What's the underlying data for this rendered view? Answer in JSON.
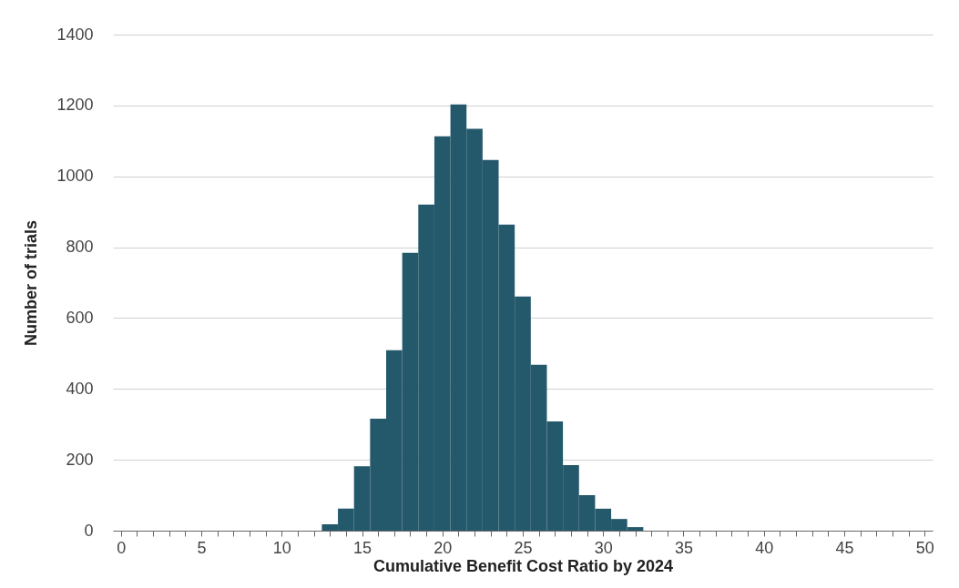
{
  "chart_data": {
    "type": "histogram",
    "xlabel": "Cumulative Benefit Cost Ratio by 2024",
    "ylabel": "Number of trials",
    "bins": [
      12.5,
      13.5,
      14.5,
      15.5,
      16.5,
      17.5,
      18.5,
      19.5,
      20.5,
      21.5,
      22.5,
      23.5,
      24.5,
      25.5,
      26.5,
      27.5,
      28.5,
      29.5,
      30.5,
      31.5,
      32.5
    ],
    "values": [
      18,
      62,
      182,
      316,
      509,
      784,
      920,
      1113,
      1203,
      1134,
      1046,
      864,
      661,
      468,
      308,
      185,
      100,
      62,
      33,
      10
    ],
    "color": "#24596b",
    "xlim": [
      -0.5,
      50.5
    ],
    "xticks": [
      0,
      {
        "value": 1,
        "label": null
      },
      {
        "value": 2,
        "label": null
      },
      {
        "value": 3,
        "label": null
      },
      {
        "value": 4,
        "label": null
      },
      5,
      {
        "value": 6,
        "label": null
      },
      {
        "value": 7,
        "label": null
      },
      {
        "value": 8,
        "label": null
      },
      {
        "value": 9,
        "label": null
      },
      10,
      {
        "value": 11,
        "label": null
      },
      {
        "value": 12,
        "label": null
      },
      {
        "value": 13,
        "label": null
      },
      {
        "value": 14,
        "label": null
      },
      15,
      {
        "value": 16,
        "label": null
      },
      {
        "value": 17,
        "label": null
      },
      {
        "value": 18,
        "label": null
      },
      {
        "value": 19,
        "label": null
      },
      20,
      {
        "value": 21,
        "label": null
      },
      {
        "value": 22,
        "label": null
      },
      {
        "value": 23,
        "label": null
      },
      {
        "value": 24,
        "label": null
      },
      25,
      {
        "value": 26,
        "label": null
      },
      {
        "value": 27,
        "label": null
      },
      {
        "value": 28,
        "label": null
      },
      {
        "value": 29,
        "label": null
      },
      30,
      {
        "value": 31,
        "label": null
      },
      {
        "value": 32,
        "label": null
      },
      {
        "value": 33,
        "label": null
      },
      {
        "value": 34,
        "label": null
      },
      35,
      {
        "value": 36,
        "label": null
      },
      {
        "value": 37,
        "label": null
      },
      {
        "value": 38,
        "label": null
      },
      {
        "value": 39,
        "label": null
      },
      40,
      {
        "value": 41,
        "label": null
      },
      {
        "value": 42,
        "label": null
      },
      {
        "value": 43,
        "label": null
      },
      {
        "value": 44,
        "label": null
      },
      45,
      {
        "value": 46,
        "label": null
      },
      {
        "value": 47,
        "label": null
      },
      {
        "value": 48,
        "label": null
      },
      {
        "value": 49,
        "label": null
      },
      50
    ],
    "ylim": [
      0,
      1400
    ],
    "yticks": [
      0,
      200,
      400,
      600,
      800,
      1000,
      1200,
      1400
    ],
    "grid": "y"
  }
}
